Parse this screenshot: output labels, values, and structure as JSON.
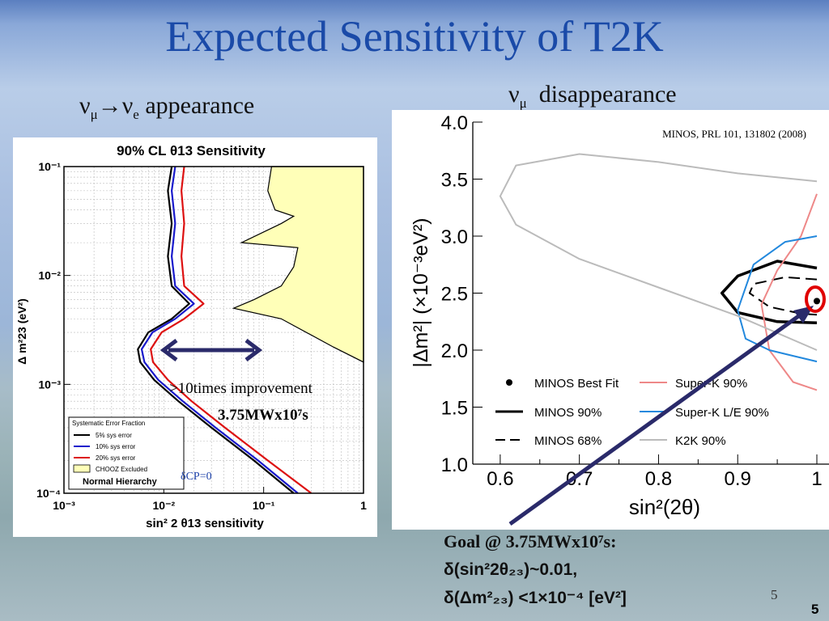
{
  "slide": {
    "title": "Expected Sensitivity of T2K",
    "left_heading": {
      "nu": "ν",
      "mu": "μ",
      "arrow": "→",
      "e": "e",
      "rest": " appearance"
    },
    "right_heading": {
      "nu": "ν",
      "mu": "μ",
      "rest": "  disappearance"
    },
    "page_number": "5",
    "page_number_bold": "5",
    "goal_line1": "Goal  @ 3.75MWx10⁷s:",
    "goal_line2": "δ(sin²2θ₂₃)~0.01,",
    "goal_line3": "δ(Δm²₂₃) <1×10⁻⁴ [eV²]",
    "colors": {
      "title": "#1a4aa8",
      "arrow": "#2a2a6a",
      "marker": "#e00000"
    }
  },
  "left_chart_text": {
    "title": "90% CL θ13 Sensitivity",
    "ylabel": "Δ m²23 (eV²)",
    "xlabel": "sin² 2 θ13 sensitivity",
    "y_ticks": [
      "10⁻¹",
      "10⁻²",
      "10⁻³",
      "10⁻⁴"
    ],
    "x_ticks": [
      "10⁻³",
      "10⁻²",
      "10⁻¹",
      "1"
    ],
    "legend_title": "Systematic Error Fraction",
    "legend_items": [
      "5% sys error",
      "10% sys error",
      "20% sys error",
      "CHOOZ Excluded",
      "Normal Hierarchy"
    ],
    "annotation_improvement": ">10times improvement",
    "annotation_power": "3.75MWx10⁷s",
    "annotation_dcp": "δCP=0"
  },
  "right_chart_text": {
    "citation": "MINOS, PRL 101, 131802 (2008)",
    "ylabel": "|Δm²| (×10⁻³eV²)",
    "xlabel": "sin²(2θ)",
    "y_ticks": [
      "1.0",
      "1.5",
      "2.0",
      "2.5",
      "3.0",
      "3.5",
      "4.0"
    ],
    "x_ticks": [
      "0.6",
      "0.7",
      "0.8",
      "0.9",
      "1"
    ],
    "legend_items": [
      "MINOS Best Fit",
      "Super-K 90%",
      "MINOS 90%",
      "Super-K L/E 90%",
      "MINOS 68%",
      "K2K 90%"
    ]
  },
  "chart_data": [
    {
      "type": "line",
      "title": "90% CL θ13 Sensitivity",
      "xlabel": "sin² 2 θ13 sensitivity",
      "ylabel": "Δ m²23 (eV²)",
      "xscale": "log",
      "yscale": "log",
      "xlim": [
        0.001,
        1
      ],
      "ylim": [
        0.0001,
        0.1
      ],
      "grid": true,
      "legend_position": "bottom-left",
      "series": [
        {
          "name": "5% sys error",
          "color": "#000000",
          "points": [
            [
              0.012,
              0.1
            ],
            [
              0.011,
              0.06
            ],
            [
              0.012,
              0.03
            ],
            [
              0.011,
              0.015
            ],
            [
              0.012,
              0.008
            ],
            [
              0.018,
              0.0055
            ],
            [
              0.012,
              0.004
            ],
            [
              0.007,
              0.003
            ],
            [
              0.0055,
              0.0021
            ],
            [
              0.0058,
              0.0016
            ],
            [
              0.008,
              0.0011
            ],
            [
              0.014,
              0.0007
            ],
            [
              0.03,
              0.0004
            ],
            [
              0.08,
              0.0002
            ],
            [
              0.2,
              0.0001
            ]
          ]
        },
        {
          "name": "10% sys error",
          "color": "#1a1acc",
          "points": [
            [
              0.013,
              0.1
            ],
            [
              0.012,
              0.06
            ],
            [
              0.013,
              0.03
            ],
            [
              0.012,
              0.015
            ],
            [
              0.013,
              0.008
            ],
            [
              0.02,
              0.0055
            ],
            [
              0.013,
              0.004
            ],
            [
              0.0077,
              0.003
            ],
            [
              0.006,
              0.0021
            ],
            [
              0.0064,
              0.0016
            ],
            [
              0.0088,
              0.0011
            ],
            [
              0.0155,
              0.0007
            ],
            [
              0.033,
              0.0004
            ],
            [
              0.088,
              0.0002
            ],
            [
              0.22,
              0.0001
            ]
          ]
        },
        {
          "name": "20% sys error",
          "color": "#dd1111",
          "points": [
            [
              0.016,
              0.1
            ],
            [
              0.015,
              0.06
            ],
            [
              0.016,
              0.03
            ],
            [
              0.015,
              0.015
            ],
            [
              0.016,
              0.008
            ],
            [
              0.025,
              0.0055
            ],
            [
              0.016,
              0.004
            ],
            [
              0.0095,
              0.003
            ],
            [
              0.0074,
              0.0021
            ],
            [
              0.0078,
              0.0016
            ],
            [
              0.011,
              0.0011
            ],
            [
              0.019,
              0.0007
            ],
            [
              0.041,
              0.0004
            ],
            [
              0.11,
              0.0002
            ],
            [
              0.3,
              0.0001
            ]
          ]
        },
        {
          "name": "CHOOZ Excluded",
          "color": "#ffffb8",
          "points": [
            [
              0.12,
              0.1
            ],
            [
              0.11,
              0.06
            ],
            [
              0.13,
              0.04
            ],
            [
              0.2,
              0.035
            ],
            [
              0.15,
              0.03
            ],
            [
              0.06,
              0.02
            ],
            [
              0.22,
              0.018
            ],
            [
              0.2,
              0.012
            ],
            [
              0.15,
              0.008
            ],
            [
              0.08,
              0.006
            ],
            [
              0.05,
              0.005
            ],
            [
              0.15,
              0.004
            ],
            [
              0.5,
              0.0022
            ],
            [
              1,
              0.0016
            ]
          ]
        }
      ]
    },
    {
      "type": "line",
      "xlabel": "sin²(2θ)",
      "ylabel": "|Δm²| (×10⁻³eV²)",
      "xlim": [
        0.55,
        1.0
      ],
      "ylim": [
        1.0,
        4.0
      ],
      "grid": false,
      "legend_position": "bottom",
      "series": [
        {
          "name": "MINOS Best Fit",
          "color": "#000000",
          "points": [
            [
              1.0,
              2.43
            ]
          ]
        },
        {
          "name": "MINOS 90%",
          "color": "#000000",
          "points": [
            [
              1.0,
              2.72
            ],
            [
              0.95,
              2.78
            ],
            [
              0.9,
              2.65
            ],
            [
              0.88,
              2.5
            ],
            [
              0.9,
              2.33
            ],
            [
              0.95,
              2.25
            ],
            [
              1.0,
              2.24
            ]
          ]
        },
        {
          "name": "MINOS 68%",
          "color": "#000000",
          "points": [
            [
              1.0,
              2.62
            ],
            [
              0.96,
              2.64
            ],
            [
              0.92,
              2.58
            ],
            [
              0.915,
              2.5
            ],
            [
              0.94,
              2.38
            ],
            [
              0.98,
              2.32
            ],
            [
              1.0,
              2.31
            ]
          ]
        },
        {
          "name": "Super-K 90%",
          "color": "#ee8888",
          "points": [
            [
              1.0,
              3.37
            ],
            [
              0.98,
              3.0
            ],
            [
              0.95,
              2.7
            ],
            [
              0.93,
              2.4
            ],
            [
              0.94,
              2.0
            ],
            [
              0.97,
              1.72
            ],
            [
              1.0,
              1.65
            ]
          ]
        },
        {
          "name": "Super-K L/E 90%",
          "color": "#2288dd",
          "points": [
            [
              1.0,
              3.0
            ],
            [
              0.96,
              2.95
            ],
            [
              0.92,
              2.75
            ],
            [
              0.9,
              2.35
            ],
            [
              0.91,
              2.1
            ],
            [
              0.94,
              2.0
            ],
            [
              0.97,
              1.95
            ],
            [
              1.0,
              1.9
            ]
          ]
        },
        {
          "name": "K2K 90%",
          "color": "#bbbbbb",
          "points": [
            [
              1.0,
              3.48
            ],
            [
              0.9,
              3.55
            ],
            [
              0.8,
              3.65
            ],
            [
              0.7,
              3.72
            ],
            [
              0.62,
              3.62
            ],
            [
              0.6,
              3.35
            ],
            [
              0.62,
              3.1
            ],
            [
              0.7,
              2.8
            ],
            [
              0.8,
              2.55
            ],
            [
              0.9,
              2.3
            ],
            [
              1.0,
              2.0
            ]
          ]
        }
      ]
    }
  ]
}
